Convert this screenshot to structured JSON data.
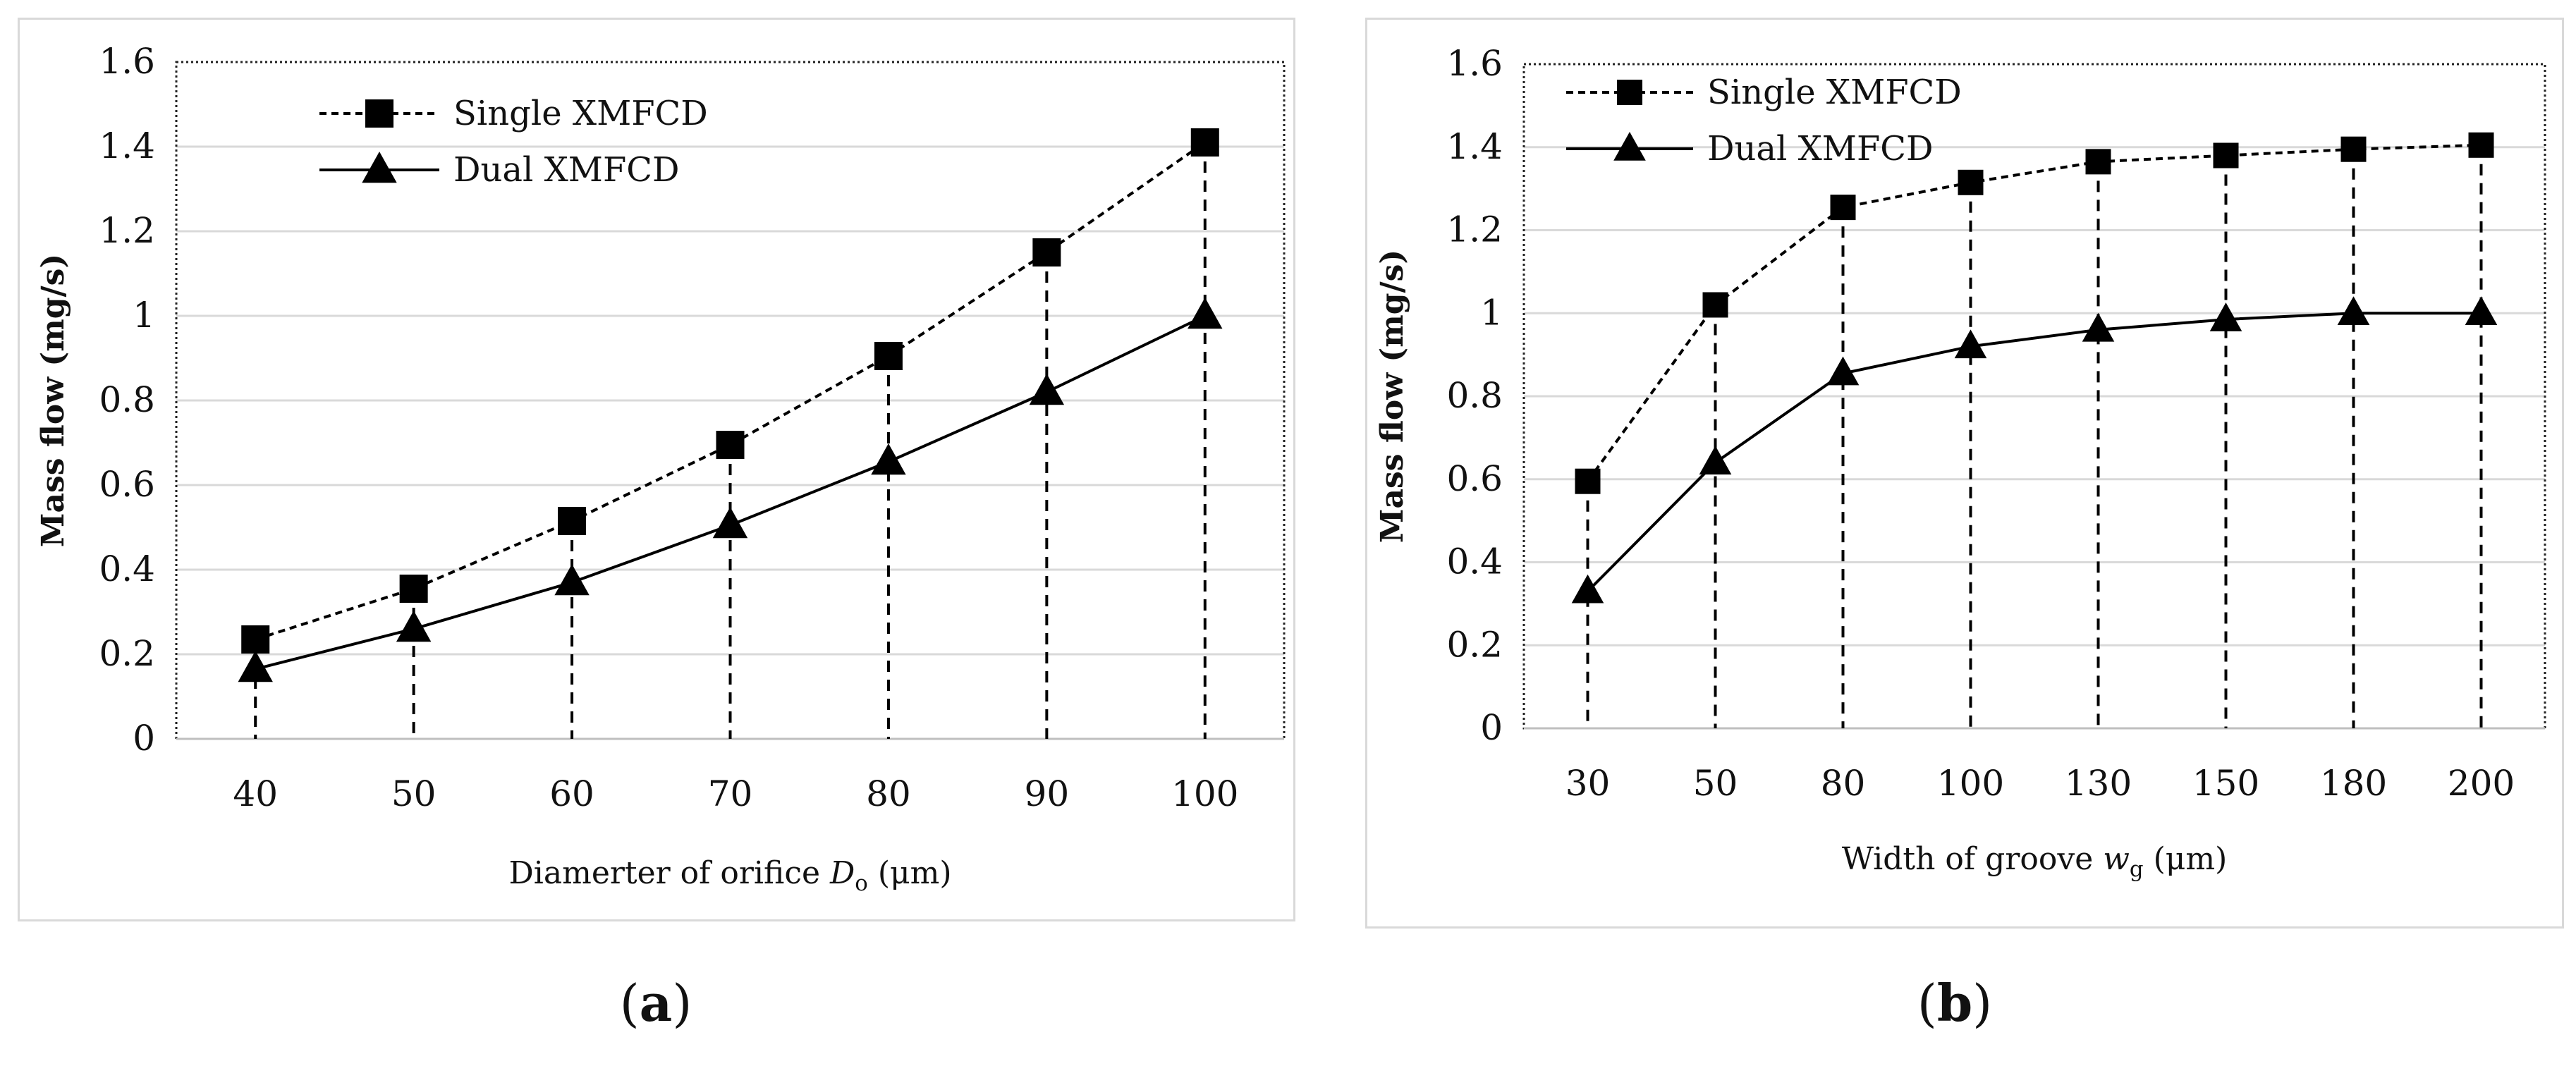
{
  "chart_data": [
    {
      "type": "line",
      "panel": "a",
      "caption": "(a)",
      "categories": [
        "40",
        "50",
        "60",
        "70",
        "80",
        "90",
        "100"
      ],
      "series": [
        {
          "name": "Single XMFCD",
          "marker": "square",
          "line_style": "dashed",
          "values": [
            0.235,
            0.355,
            0.515,
            0.695,
            0.905,
            1.15,
            1.41
          ]
        },
        {
          "name": "Dual XMFCD",
          "marker": "triangle",
          "line_style": "solid",
          "values": [
            0.165,
            0.26,
            0.37,
            0.505,
            0.655,
            0.82,
            1.0
          ]
        }
      ],
      "ylim": [
        0,
        1.6
      ],
      "yticks": [
        "0",
        "0.2",
        "0.4",
        "0.6",
        "0.8",
        "1",
        "1.2",
        "1.4",
        "1.6"
      ],
      "ylabel": "Mass flow (mg/s)",
      "xlabel_prefix": "Diamerter of orifice ",
      "xlabel_var": "D",
      "xlabel_sub": "o",
      "xlabel_suffix": " (μm)",
      "legend_position": "top-left",
      "drop_lines": true,
      "grid": "horizontal"
    },
    {
      "type": "line",
      "panel": "b",
      "caption": "(b)",
      "categories": [
        "30",
        "50",
        "80",
        "100",
        "130",
        "150",
        "180",
        "200"
      ],
      "series": [
        {
          "name": "Single XMFCD",
          "marker": "square",
          "line_style": "dashed",
          "values": [
            0.595,
            1.02,
            1.255,
            1.315,
            1.365,
            1.38,
            1.395,
            1.405
          ]
        },
        {
          "name": "Dual XMFCD",
          "marker": "triangle",
          "line_style": "solid",
          "values": [
            0.33,
            0.64,
            0.855,
            0.92,
            0.96,
            0.985,
            1.0,
            1.0
          ]
        }
      ],
      "ylim": [
        0,
        1.6
      ],
      "yticks": [
        "0",
        "0.2",
        "0.4",
        "0.6",
        "0.8",
        "1",
        "1.2",
        "1.4",
        "1.6"
      ],
      "ylabel": "Mass flow (mg/s)",
      "xlabel_prefix": "Width of groove ",
      "xlabel_var": "w",
      "xlabel_sub": "g",
      "xlabel_suffix": " (μm)",
      "legend_position": "top-left",
      "drop_lines": true,
      "grid": "horizontal"
    }
  ]
}
